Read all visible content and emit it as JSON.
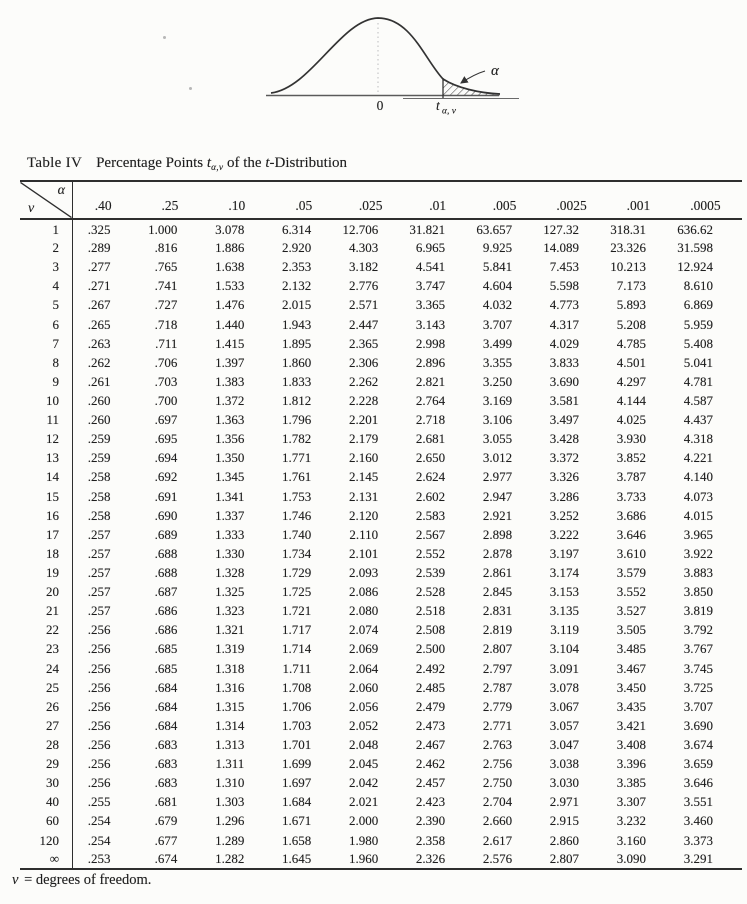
{
  "figure": {
    "alpha_label": "α",
    "zero_label": "0",
    "t_label": "t",
    "t_subscript": "α, ν"
  },
  "table": {
    "title": {
      "label": "Table IV",
      "part1": "Percentage Points ",
      "t1": "t",
      "sub": "α,ν",
      "part2": " of the ",
      "t2": "t",
      "part3": "-Distribution"
    },
    "corner": {
      "alpha": "α",
      "nu": "ν"
    },
    "col_headers": [
      ".40",
      ".25",
      ".10",
      ".05",
      ".025",
      ".01",
      ".005",
      ".0025",
      ".001",
      ".0005"
    ],
    "rows": [
      {
        "v": "1",
        "values": [
          ".325",
          "1.000",
          "3.078",
          "6.314",
          "12.706",
          "31.821",
          "63.657",
          "127.32",
          "318.31",
          "636.62"
        ]
      },
      {
        "v": "2",
        "values": [
          ".289",
          ".816",
          "1.886",
          "2.920",
          "4.303",
          "6.965",
          "9.925",
          "14.089",
          "23.326",
          "31.598"
        ]
      },
      {
        "v": "3",
        "values": [
          ".277",
          ".765",
          "1.638",
          "2.353",
          "3.182",
          "4.541",
          "5.841",
          "7.453",
          "10.213",
          "12.924"
        ]
      },
      {
        "v": "4",
        "values": [
          ".271",
          ".741",
          "1.533",
          "2.132",
          "2.776",
          "3.747",
          "4.604",
          "5.598",
          "7.173",
          "8.610"
        ]
      },
      {
        "v": "5",
        "values": [
          ".267",
          ".727",
          "1.476",
          "2.015",
          "2.571",
          "3.365",
          "4.032",
          "4.773",
          "5.893",
          "6.869"
        ]
      },
      {
        "v": "6",
        "values": [
          ".265",
          ".718",
          "1.440",
          "1.943",
          "2.447",
          "3.143",
          "3.707",
          "4.317",
          "5.208",
          "5.959"
        ]
      },
      {
        "v": "7",
        "values": [
          ".263",
          ".711",
          "1.415",
          "1.895",
          "2.365",
          "2.998",
          "3.499",
          "4.029",
          "4.785",
          "5.408"
        ]
      },
      {
        "v": "8",
        "values": [
          ".262",
          ".706",
          "1.397",
          "1.860",
          "2.306",
          "2.896",
          "3.355",
          "3.833",
          "4.501",
          "5.041"
        ]
      },
      {
        "v": "9",
        "values": [
          ".261",
          ".703",
          "1.383",
          "1.833",
          "2.262",
          "2.821",
          "3.250",
          "3.690",
          "4.297",
          "4.781"
        ]
      },
      {
        "v": "10",
        "values": [
          ".260",
          ".700",
          "1.372",
          "1.812",
          "2.228",
          "2.764",
          "3.169",
          "3.581",
          "4.144",
          "4.587"
        ]
      },
      {
        "v": "11",
        "values": [
          ".260",
          ".697",
          "1.363",
          "1.796",
          "2.201",
          "2.718",
          "3.106",
          "3.497",
          "4.025",
          "4.437"
        ]
      },
      {
        "v": "12",
        "values": [
          ".259",
          ".695",
          "1.356",
          "1.782",
          "2.179",
          "2.681",
          "3.055",
          "3.428",
          "3.930",
          "4.318"
        ]
      },
      {
        "v": "13",
        "values": [
          ".259",
          ".694",
          "1.350",
          "1.771",
          "2.160",
          "2.650",
          "3.012",
          "3.372",
          "3.852",
          "4.221"
        ]
      },
      {
        "v": "14",
        "values": [
          ".258",
          ".692",
          "1.345",
          "1.761",
          "2.145",
          "2.624",
          "2.977",
          "3.326",
          "3.787",
          "4.140"
        ]
      },
      {
        "v": "15",
        "values": [
          ".258",
          ".691",
          "1.341",
          "1.753",
          "2.131",
          "2.602",
          "2.947",
          "3.286",
          "3.733",
          "4.073"
        ]
      },
      {
        "v": "16",
        "values": [
          ".258",
          ".690",
          "1.337",
          "1.746",
          "2.120",
          "2.583",
          "2.921",
          "3.252",
          "3.686",
          "4.015"
        ]
      },
      {
        "v": "17",
        "values": [
          ".257",
          ".689",
          "1.333",
          "1.740",
          "2.110",
          "2.567",
          "2.898",
          "3.222",
          "3.646",
          "3.965"
        ]
      },
      {
        "v": "18",
        "values": [
          ".257",
          ".688",
          "1.330",
          "1.734",
          "2.101",
          "2.552",
          "2.878",
          "3.197",
          "3.610",
          "3.922"
        ]
      },
      {
        "v": "19",
        "values": [
          ".257",
          ".688",
          "1.328",
          "1.729",
          "2.093",
          "2.539",
          "2.861",
          "3.174",
          "3.579",
          "3.883"
        ]
      },
      {
        "v": "20",
        "values": [
          ".257",
          ".687",
          "1.325",
          "1.725",
          "2.086",
          "2.528",
          "2.845",
          "3.153",
          "3.552",
          "3.850"
        ]
      },
      {
        "v": "21",
        "values": [
          ".257",
          ".686",
          "1.323",
          "1.721",
          "2.080",
          "2.518",
          "2.831",
          "3.135",
          "3.527",
          "3.819"
        ]
      },
      {
        "v": "22",
        "values": [
          ".256",
          ".686",
          "1.321",
          "1.717",
          "2.074",
          "2.508",
          "2.819",
          "3.119",
          "3.505",
          "3.792"
        ]
      },
      {
        "v": "23",
        "values": [
          ".256",
          ".685",
          "1.319",
          "1.714",
          "2.069",
          "2.500",
          "2.807",
          "3.104",
          "3.485",
          "3.767"
        ]
      },
      {
        "v": "24",
        "values": [
          ".256",
          ".685",
          "1.318",
          "1.711",
          "2.064",
          "2.492",
          "2.797",
          "3.091",
          "3.467",
          "3.745"
        ]
      },
      {
        "v": "25",
        "values": [
          ".256",
          ".684",
          "1.316",
          "1.708",
          "2.060",
          "2.485",
          "2.787",
          "3.078",
          "3.450",
          "3.725"
        ]
      },
      {
        "v": "26",
        "values": [
          ".256",
          ".684",
          "1.315",
          "1.706",
          "2.056",
          "2.479",
          "2.779",
          "3.067",
          "3.435",
          "3.707"
        ]
      },
      {
        "v": "27",
        "values": [
          ".256",
          ".684",
          "1.314",
          "1.703",
          "2.052",
          "2.473",
          "2.771",
          "3.057",
          "3.421",
          "3.690"
        ]
      },
      {
        "v": "28",
        "values": [
          ".256",
          ".683",
          "1.313",
          "1.701",
          "2.048",
          "2.467",
          "2.763",
          "3.047",
          "3.408",
          "3.674"
        ]
      },
      {
        "v": "29",
        "values": [
          ".256",
          ".683",
          "1.311",
          "1.699",
          "2.045",
          "2.462",
          "2.756",
          "3.038",
          "3.396",
          "3.659"
        ]
      },
      {
        "v": "30",
        "values": [
          ".256",
          ".683",
          "1.310",
          "1.697",
          "2.042",
          "2.457",
          "2.750",
          "3.030",
          "3.385",
          "3.646"
        ]
      },
      {
        "v": "40",
        "values": [
          ".255",
          ".681",
          "1.303",
          "1.684",
          "2.021",
          "2.423",
          "2.704",
          "2.971",
          "3.307",
          "3.551"
        ]
      },
      {
        "v": "60",
        "values": [
          ".254",
          ".679",
          "1.296",
          "1.671",
          "2.000",
          "2.390",
          "2.660",
          "2.915",
          "3.232",
          "3.460"
        ]
      },
      {
        "v": "120",
        "values": [
          ".254",
          ".677",
          "1.289",
          "1.658",
          "1.980",
          "2.358",
          "2.617",
          "2.860",
          "3.160",
          "3.373"
        ]
      },
      {
        "v": "∞",
        "values": [
          ".253",
          ".674",
          "1.282",
          "1.645",
          "1.960",
          "2.326",
          "2.576",
          "2.807",
          "3.090",
          "3.291"
        ]
      }
    ]
  },
  "footnote": {
    "nu": "ν",
    "rest": " = degrees of freedom."
  }
}
